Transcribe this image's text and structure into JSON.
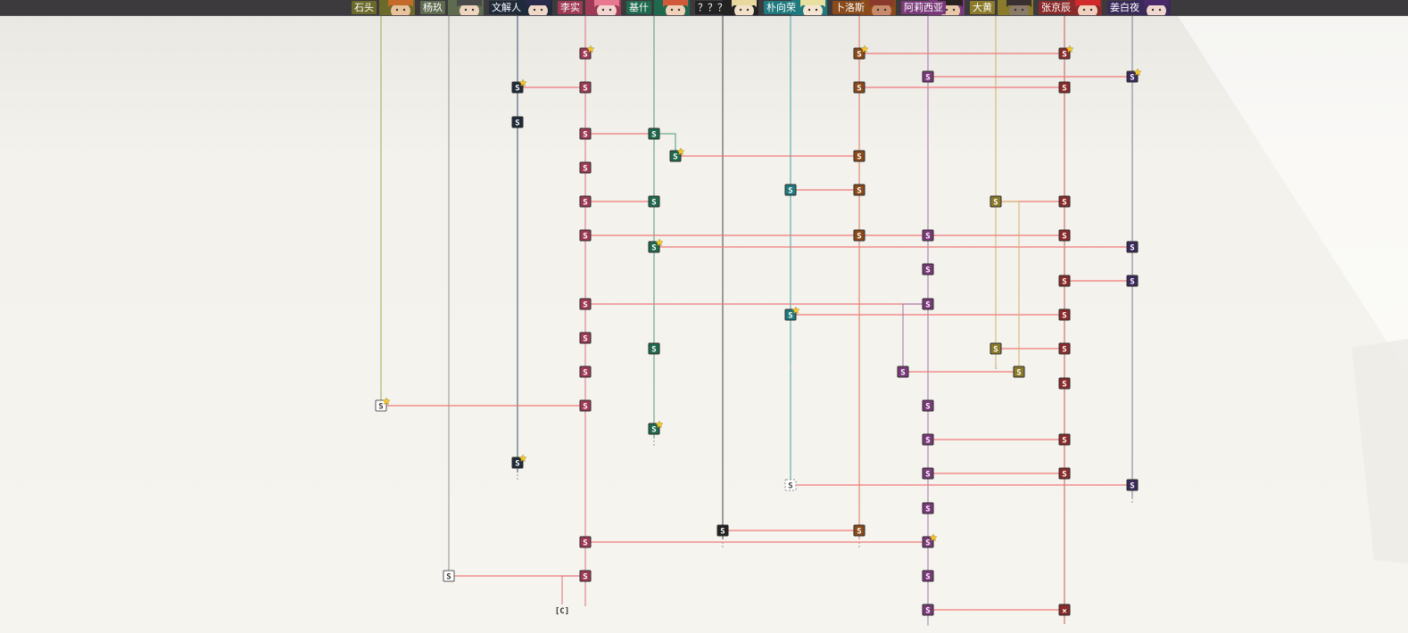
{
  "header": {
    "characters": [
      {
        "id": "shitou",
        "label": "石头",
        "color": "#6b6a2a",
        "line": "#a4a44a",
        "face_skin": "#e8c29a",
        "face_hair": "#c46a2a"
      },
      {
        "id": "yangyu",
        "label": "杨玖",
        "color": "#5f6b50",
        "line": "#8e948c",
        "face_skin": "#efd4c0",
        "face_hair": "#4a4a4a"
      },
      {
        "id": "wenxieren",
        "label": "文解人",
        "color": "#1f2a3a",
        "line": "#33506a",
        "face_skin": "#f0d8c8",
        "face_hair": "#2a2a4a"
      },
      {
        "id": "lixiu",
        "label": "李实",
        "color": "#9e3a56",
        "line": "#e0707e",
        "face_skin": "#f3d6cf",
        "face_hair": "#e87890"
      },
      {
        "id": "jirui",
        "label": "基什",
        "color": "#1f6a4e",
        "line": "#4a9a7a",
        "face_skin": "#f0d2b8",
        "face_hair": "#d05a3a"
      },
      {
        "id": "unknown",
        "label": "？？？",
        "color": "#222222",
        "line": "#444444",
        "face_skin": "#f2e0c8",
        "face_hair": "#e8d8a0"
      },
      {
        "id": "puxiangrong",
        "label": "朴向荣",
        "color": "#1f7a7e",
        "line": "#3aa6aa",
        "face_skin": "#f5e4d0",
        "face_hair": "#e8e0a0"
      },
      {
        "id": "buluosi",
        "label": "卜洛斯",
        "color": "#8a4a1a",
        "line": "#e07060",
        "face_skin": "#c88a6a",
        "face_hair": "#8a3a2a"
      },
      {
        "id": "alixiya",
        "label": "阿莉西亚",
        "color": "#7a3a7a",
        "line": "#a070a8",
        "face_skin": "#e8c8a8",
        "face_hair": "#2a2020"
      },
      {
        "id": "dahuang",
        "label": "大黄",
        "color": "#8a7a2a",
        "line": "#d4b06a",
        "face_skin": "#8a7a6a",
        "face_hair": "#3a3030"
      },
      {
        "id": "zhangjingchen",
        "label": "张京辰",
        "color": "#8a2a2a",
        "line": "#c45a5a",
        "face_skin": "#f2d0c0",
        "face_hair": "#d02a2a"
      },
      {
        "id": "jiangbaiye",
        "label": "姜白夜",
        "color": "#3a2a5a",
        "line": "#7a7a9a",
        "face_skin": "#f0d8d0",
        "face_hair": "#4a2a6a"
      }
    ]
  },
  "graph": {
    "node_label": "S",
    "special_labels": {
      "choice": "[C]",
      "cross": "×"
    },
    "link_color": "#ef7a7a"
  }
}
